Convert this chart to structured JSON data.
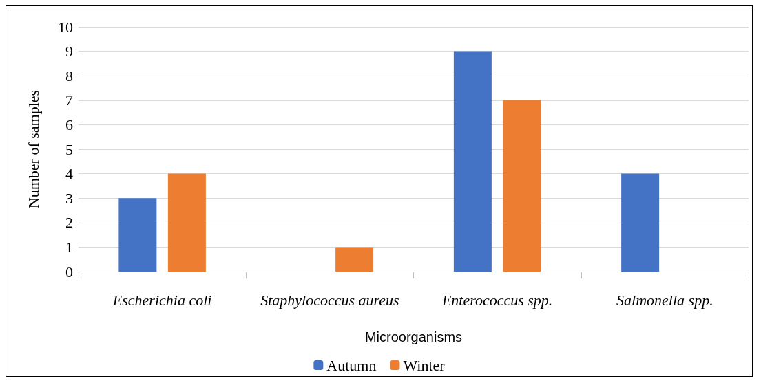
{
  "chart_data": {
    "type": "bar",
    "xlabel": "Microorganisms",
    "ylabel": "Number of samples",
    "categories": [
      "Escherichia coli",
      "Staphylococcus aureus",
      "Enterococcus spp.",
      "Salmonella spp."
    ],
    "series": [
      {
        "name": "Autumn",
        "color": "#4472c4",
        "values": [
          3,
          0,
          9,
          4
        ]
      },
      {
        "name": "Winter",
        "color": "#ed7d31",
        "values": [
          4,
          1,
          7,
          0
        ]
      }
    ],
    "ylim": [
      0,
      10
    ],
    "yticks": [
      0,
      1,
      2,
      3,
      4,
      5,
      6,
      7,
      8,
      9,
      10
    ],
    "grid": "y",
    "legend": "bottom"
  }
}
